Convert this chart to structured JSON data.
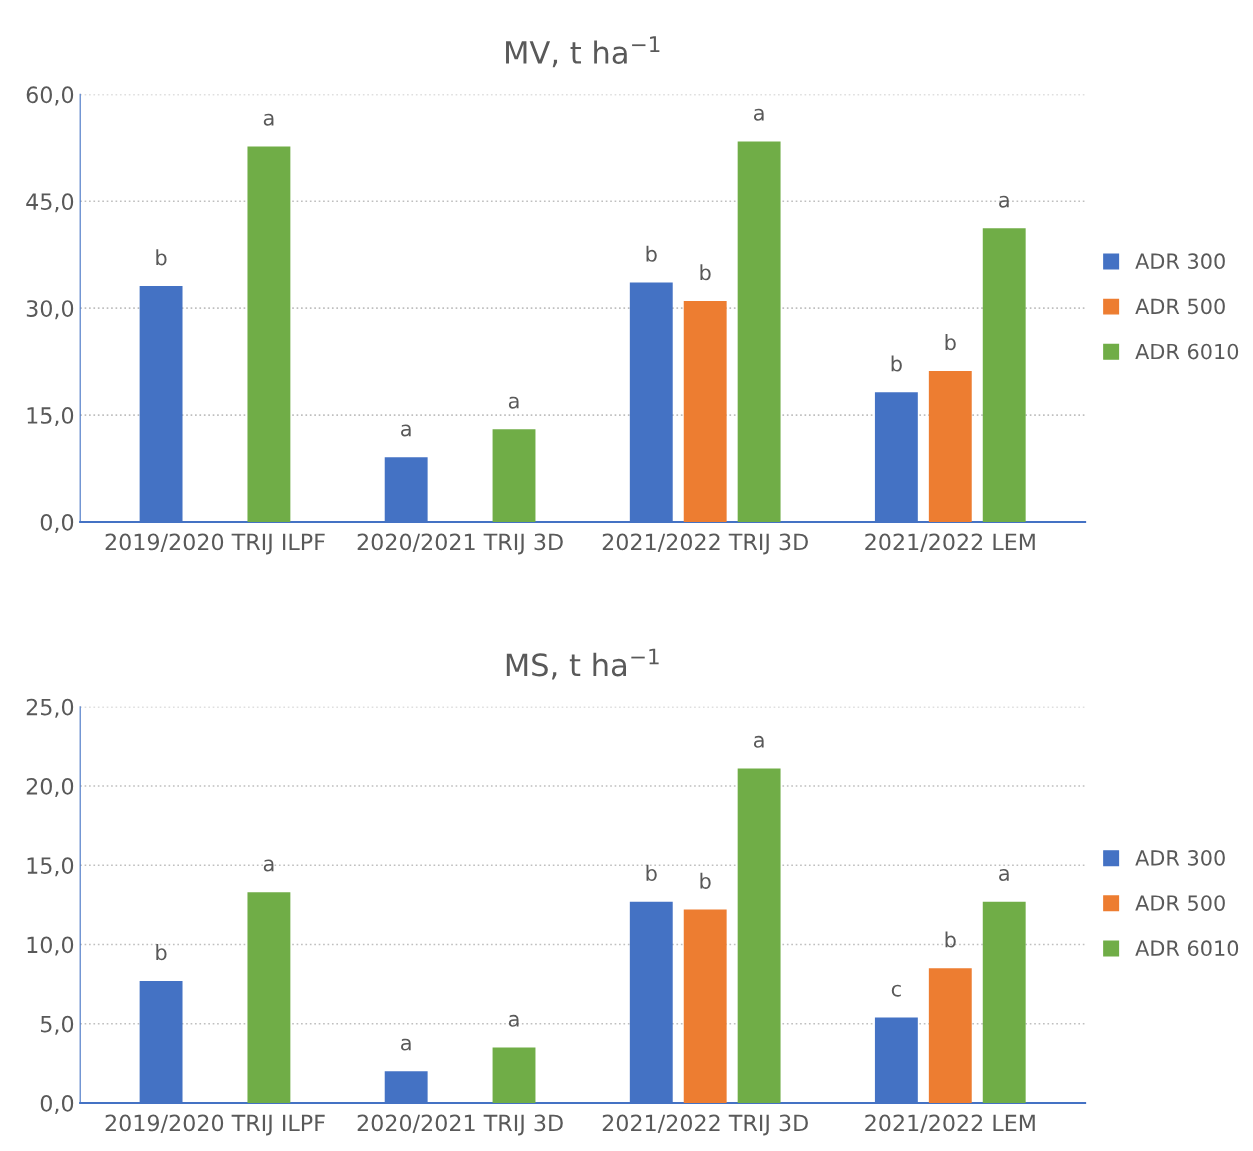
{
  "chart_data": [
    {
      "type": "bar",
      "title": "MV, t ha$^{−1}$",
      "categories": [
        "2019/2020 TRIJ ILPF",
        "2020/2021 TRIJ 3D",
        "2021/2022 TRIJ 3D",
        "2021/2022 LEM"
      ],
      "series": [
        {
          "name": "ADR 300",
          "color": "#4472c4",
          "values": [
            33.1,
            9.1,
            33.6,
            18.2
          ],
          "value_labels": [
            "b",
            "a",
            "b",
            "b"
          ]
        },
        {
          "name": "ADR 500",
          "color": "#ed7d31",
          "values": [
            null,
            null,
            31.0,
            21.2
          ],
          "value_labels": [
            null,
            null,
            "b",
            "b"
          ]
        },
        {
          "name": "ADR 6010",
          "color": "#70ad47",
          "values": [
            52.7,
            13.0,
            53.4,
            41.2
          ],
          "value_labels": [
            "a",
            "a",
            "a",
            "a"
          ]
        }
      ],
      "ylim": [
        0,
        60
      ],
      "yticks": [
        {
          "value": 0,
          "label": "0,0"
        },
        {
          "value": 15,
          "label": "15,0"
        },
        {
          "value": 30,
          "label": "30,0"
        },
        {
          "value": 45,
          "label": "45,0"
        },
        {
          "value": 60,
          "label": "60,0"
        }
      ],
      "grid": "y",
      "legend": "right"
    },
    {
      "type": "bar",
      "title": "MS, t ha$^{−1}$",
      "categories": [
        "2019/2020 TRIJ ILPF",
        "2020/2021 TRIJ 3D",
        "2021/2022 TRIJ 3D",
        "2021/2022 LEM"
      ],
      "series": [
        {
          "name": "ADR 300",
          "color": "#4472c4",
          "values": [
            7.7,
            2.0,
            12.7,
            5.4
          ],
          "value_labels": [
            "b",
            "a",
            "b",
            "c"
          ]
        },
        {
          "name": "ADR 500",
          "color": "#ed7d31",
          "values": [
            null,
            null,
            12.2,
            8.5
          ],
          "value_labels": [
            null,
            null,
            "b",
            "b"
          ]
        },
        {
          "name": "ADR 6010",
          "color": "#70ad47",
          "values": [
            13.3,
            3.5,
            21.1,
            12.7
          ],
          "value_labels": [
            "a",
            "a",
            "a",
            "a"
          ]
        }
      ],
      "ylim": [
        0,
        25
      ],
      "yticks": [
        {
          "value": 0,
          "label": "0,0"
        },
        {
          "value": 5,
          "label": "5,0"
        },
        {
          "value": 10,
          "label": "10,0"
        },
        {
          "value": 15,
          "label": "15,0"
        },
        {
          "value": 20,
          "label": "20,0"
        },
        {
          "value": 25,
          "label": "25,0"
        }
      ],
      "grid": "y",
      "legend": "right"
    }
  ]
}
